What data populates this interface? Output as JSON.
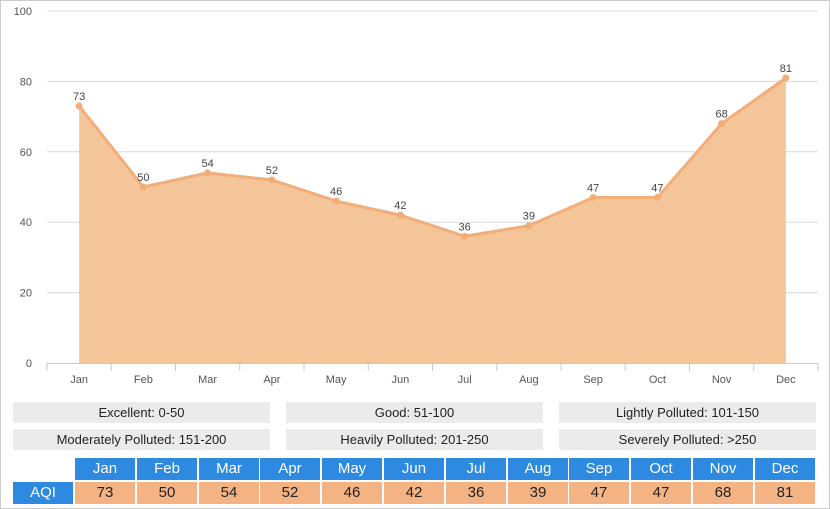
{
  "chart_data": {
    "type": "area",
    "categories": [
      "Jan",
      "Feb",
      "Mar",
      "Apr",
      "May",
      "Jun",
      "Jul",
      "Aug",
      "Sep",
      "Oct",
      "Nov",
      "Dec"
    ],
    "values": [
      73,
      50,
      54,
      52,
      46,
      42,
      36,
      39,
      47,
      47,
      68,
      81
    ],
    "ylim": [
      0,
      100
    ],
    "yticks": [
      0,
      20,
      40,
      60,
      80,
      100
    ],
    "grid": true,
    "colors": {
      "fill": "#f5c59a",
      "line": "#f2ad78",
      "grid": "#d8d8d8",
      "axis": "#c0c8d8"
    }
  },
  "legend": [
    "Excellent: 0-50",
    "Good: 51-100",
    "Lightly Polluted: 101-150",
    "Moderately Polluted: 151-200",
    "Heavily Polluted: 201-250",
    "Severely Polluted: >250"
  ],
  "table": {
    "row_label": "AQI",
    "months": [
      "Jan",
      "Feb",
      "Mar",
      "Apr",
      "May",
      "Jun",
      "Jul",
      "Aug",
      "Sep",
      "Oct",
      "Nov",
      "Dec"
    ],
    "values": [
      "73",
      "50",
      "54",
      "52",
      "46",
      "42",
      "36",
      "39",
      "47",
      "47",
      "68",
      "81"
    ],
    "colors": {
      "header": "#2e8ae0",
      "value": "#f4b383"
    }
  }
}
